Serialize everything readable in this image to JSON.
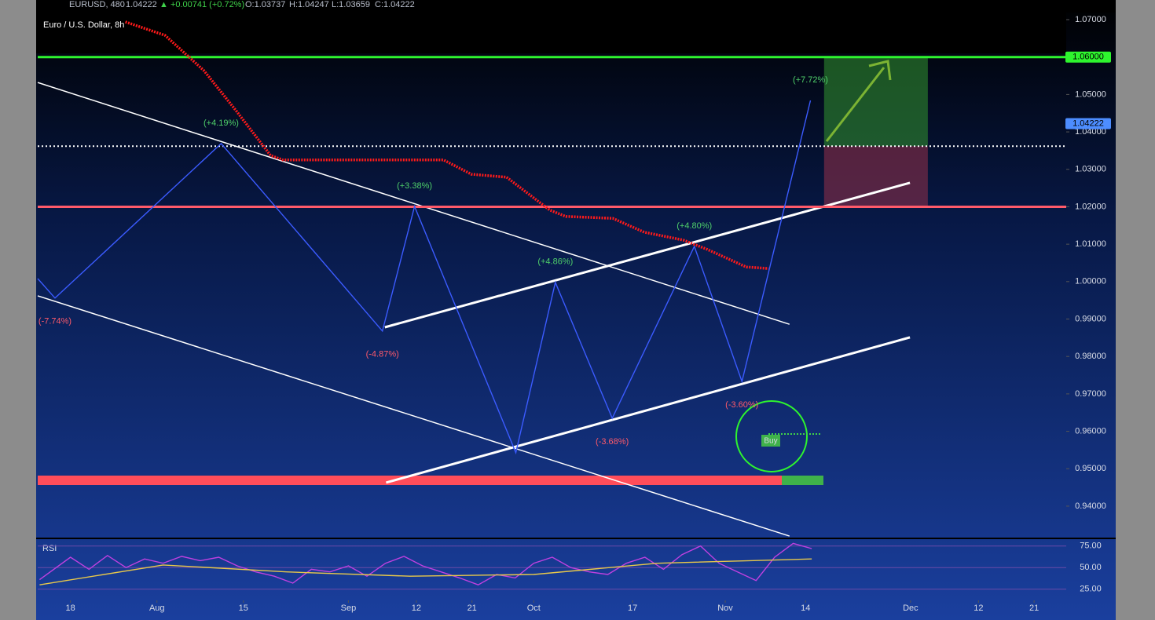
{
  "header": {
    "symbol": "EURUSD, 480",
    "price": "1.04222",
    "change": "▲ +0.00741 (+0.72%)",
    "ohlc": [
      "O:1.03737",
      "H:1.04247",
      "L:1.03659",
      "C:1.04222"
    ]
  },
  "chart_data": [
    {
      "type": "line",
      "title": "Euro / U.S. Dollar, 8h",
      "xlim": [
        -5.3,
        161.2
      ],
      "ylim": [
        0.9316,
        1.0721
      ],
      "xticks": [
        {
          "value": 0,
          "label": "18"
        },
        {
          "value": 14,
          "label": "Aug"
        },
        {
          "value": 28,
          "label": "15"
        },
        {
          "value": 45,
          "label": "Sep"
        },
        {
          "value": 56,
          "label": "12"
        },
        {
          "value": 65,
          "label": "21"
        },
        {
          "value": 75,
          "label": "Oct"
        },
        {
          "value": 91,
          "label": "17"
        },
        {
          "value": 106,
          "label": "Nov"
        },
        {
          "value": 119,
          "label": "14"
        },
        {
          "value": 136,
          "label": "Dec"
        },
        {
          "value": 147,
          "label": "12"
        },
        {
          "value": 156,
          "label": "21"
        }
      ],
      "yticks": [
        {
          "value": 1.07,
          "label": "1.07000"
        },
        {
          "value": 1.05,
          "label": "1.05000"
        },
        {
          "value": 1.04,
          "label": "1.04000"
        },
        {
          "value": 1.03,
          "label": "1.03000"
        },
        {
          "value": 1.02,
          "label": "1.02000"
        },
        {
          "value": 1.01,
          "label": "1.01000"
        },
        {
          "value": 1.0,
          "label": "1.00000"
        },
        {
          "value": 0.99,
          "label": "0.99000"
        },
        {
          "value": 0.98,
          "label": "0.98000"
        },
        {
          "value": 0.97,
          "label": "0.97000"
        },
        {
          "value": 0.96,
          "label": "0.96000"
        },
        {
          "value": 0.95,
          "label": "0.95000"
        },
        {
          "value": 0.94,
          "label": "0.94000"
        }
      ],
      "series": [
        {
          "name": "ZigZag",
          "color": "#3b5bff",
          "x": [
            -5.3,
            -2.5,
            24.4,
            50.5,
            55.7,
            72.1,
            78.5,
            87.7,
            101,
            108.7,
            119.8
          ],
          "values": [
            1.0008,
            0.9956,
            1.0369,
            0.9868,
            1.0201,
            0.9543,
            0.9998,
            0.9635,
            1.0094,
            0.9733,
            1.0484
          ],
          "swing_labels": [
            null,
            "(-7.74%)",
            "(+4.19%)",
            "(-4.87%)",
            "(+3.38%)",
            null,
            "(+4.86%)",
            "(-3.68%)",
            "(+4.80%)",
            "(-3.60%)",
            "(+7.72%)"
          ]
        },
        {
          "name": "MA",
          "color": "#ff1a1a",
          "x": [
            8.9,
            15.3,
            21.6,
            26.7,
            32.4,
            34.4,
            60.4,
            64.9,
            70.6,
            77.6,
            80.2,
            87.8,
            92.9,
            99.2,
            103.1,
            109.4,
            113.0
          ],
          "values": [
            1.0694,
            1.0658,
            1.0564,
            1.0459,
            1.0337,
            1.0325,
            1.0325,
            1.0287,
            1.0279,
            1.0191,
            1.0174,
            1.0169,
            1.0132,
            1.0111,
            1.0086,
            1.0039,
            1.0035
          ]
        }
      ],
      "trendlines": [
        {
          "x": [
            -5.3,
            116.4
          ],
          "y": [
            1.0532,
            0.9886
          ],
          "width": 1.5
        },
        {
          "x": [
            -5.3,
            116.4
          ],
          "y": [
            0.9962,
            0.932
          ],
          "width": 1.5
        },
        {
          "x": [
            50.9,
            135.9
          ],
          "y": [
            0.9878,
            1.0264
          ],
          "width": 3
        },
        {
          "x": [
            51.1,
            135.9
          ],
          "y": [
            0.9463,
            0.9851
          ],
          "width": 3
        }
      ],
      "levels": [
        {
          "value": 1.06,
          "color": "#2ef52e",
          "style": "solid",
          "width": 3
        },
        {
          "value": 1.02,
          "color": "#ff5a6a",
          "style": "solid",
          "width": 3
        },
        {
          "value": 1.0362,
          "color": "#ffffff",
          "style": "dotted",
          "width": 2
        }
      ],
      "position": {
        "x": [
          122.0,
          138.8
        ],
        "target": 1.06,
        "entry": 1.0362,
        "stop": 1.02
      },
      "price_labels": [
        {
          "value": 1.06,
          "label": "1.06000",
          "color": "#2ef52e"
        },
        {
          "value": 1.04222,
          "label": "1.04222",
          "color": "#4d8dff"
        }
      ],
      "annotations": [
        "Buy"
      ]
    },
    {
      "type": "line",
      "title": "RSI",
      "xlim": [
        -5.3,
        161.2
      ],
      "ylim": [
        12,
        82
      ],
      "yticks": [
        {
          "value": 75,
          "label": "75.00"
        },
        {
          "value": 50,
          "label": "50.00"
        },
        {
          "value": 25,
          "label": "25.00"
        }
      ],
      "series": [
        {
          "name": "RSI",
          "color": "#c040e0",
          "x": [
            -5,
            0,
            3,
            6,
            9,
            12,
            15,
            18,
            21,
            24,
            27,
            30,
            33,
            36,
            39,
            42,
            45,
            48,
            51,
            54,
            57,
            60,
            63,
            66,
            69,
            72,
            75,
            78,
            81,
            84,
            87,
            90,
            93,
            96,
            99,
            102,
            105,
            108,
            111,
            114,
            117,
            120
          ],
          "values": [
            36,
            62,
            48,
            64,
            50,
            60,
            55,
            63,
            58,
            62,
            52,
            45,
            40,
            32,
            48,
            45,
            52,
            40,
            55,
            63,
            52,
            45,
            38,
            30,
            42,
            38,
            55,
            62,
            50,
            45,
            42,
            55,
            62,
            48,
            65,
            75,
            55,
            45,
            35,
            62,
            78,
            72
          ]
        },
        {
          "name": "RSI MA",
          "color": "#e8c84a",
          "x": [
            -5,
            15,
            35,
            55,
            75,
            95,
            110,
            120
          ],
          "values": [
            30,
            53,
            45,
            40,
            42,
            55,
            58,
            60
          ]
        }
      ]
    }
  ]
}
